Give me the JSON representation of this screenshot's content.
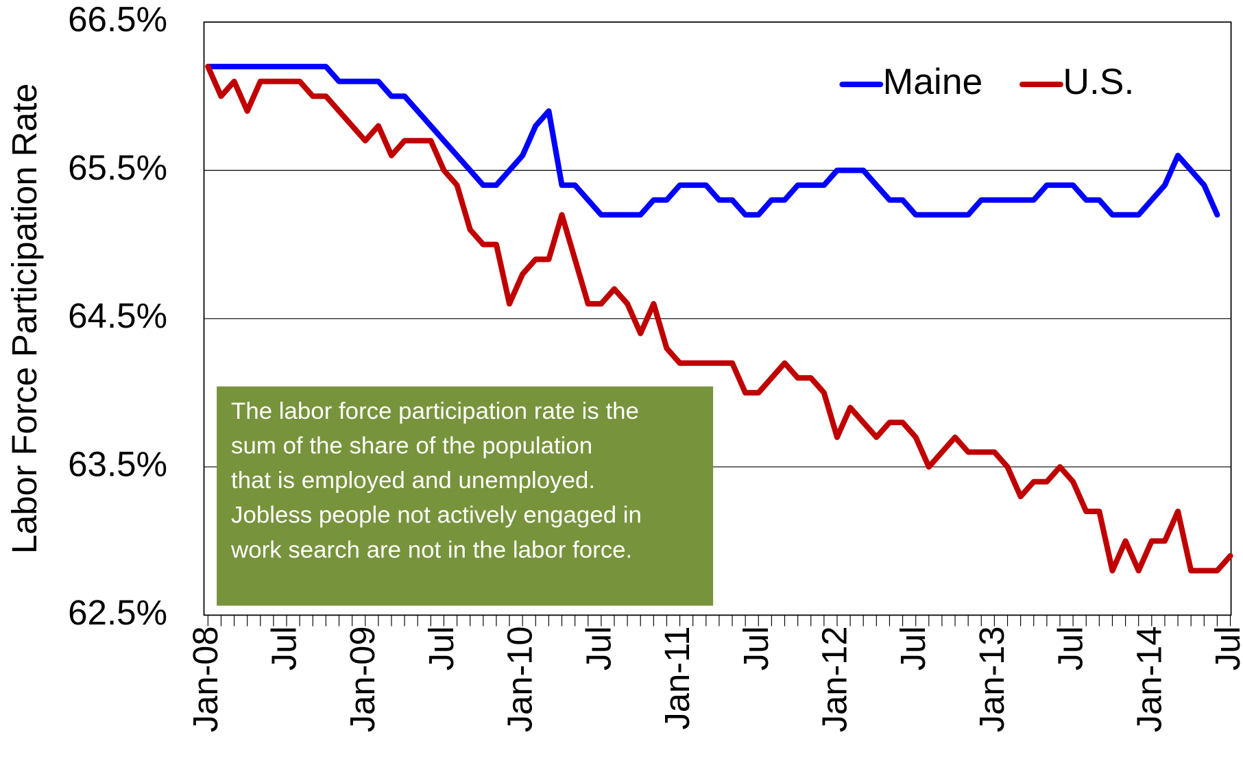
{
  "chart_data": {
    "type": "line",
    "y_axis_label": "Labor Force Participation Rate",
    "categories": [
      "Jan-08",
      null,
      null,
      null,
      null,
      null,
      "Jul",
      null,
      null,
      null,
      null,
      null,
      "Jan-09",
      null,
      null,
      null,
      null,
      null,
      "Jul",
      null,
      null,
      null,
      null,
      null,
      "Jan-10",
      null,
      null,
      null,
      null,
      null,
      "Jul",
      null,
      null,
      null,
      null,
      null,
      "Jan-11",
      null,
      null,
      null,
      null,
      null,
      "Jul",
      null,
      null,
      null,
      null,
      null,
      "Jan-12",
      null,
      null,
      null,
      null,
      null,
      "Jul",
      null,
      null,
      null,
      null,
      null,
      "Jan-13",
      null,
      null,
      null,
      null,
      null,
      "Jul",
      null,
      null,
      null,
      null,
      null,
      "Jan-14",
      null,
      null,
      null,
      null,
      null,
      "Jul"
    ],
    "series": [
      {
        "name": "Maine",
        "color": "#0000ff",
        "values": [
          66.2,
          66.2,
          66.2,
          66.2,
          66.2,
          66.2,
          66.2,
          66.2,
          66.2,
          66.2,
          66.1,
          66.1,
          66.1,
          66.1,
          66.0,
          66.0,
          65.9,
          65.8,
          65.7,
          65.6,
          65.5,
          65.4,
          65.4,
          65.5,
          65.6,
          65.8,
          65.9,
          65.4,
          65.4,
          65.3,
          65.2,
          65.2,
          65.2,
          65.2,
          65.3,
          65.3,
          65.4,
          65.4,
          65.4,
          65.3,
          65.3,
          65.2,
          65.2,
          65.3,
          65.3,
          65.4,
          65.4,
          65.4,
          65.5,
          65.5,
          65.5,
          65.4,
          65.3,
          65.3,
          65.2,
          65.2,
          65.2,
          65.2,
          65.2,
          65.3,
          65.3,
          65.3,
          65.3,
          65.3,
          65.4,
          65.4,
          65.4,
          65.3,
          65.3,
          65.2,
          65.2,
          65.2,
          65.3,
          65.4,
          65.6,
          65.5,
          65.4,
          65.2,
          null
        ]
      },
      {
        "name": "U.S.",
        "color": "#c00000",
        "values": [
          66.2,
          66.0,
          66.1,
          65.9,
          66.1,
          66.1,
          66.1,
          66.1,
          66.0,
          66.0,
          65.9,
          65.8,
          65.7,
          65.8,
          65.6,
          65.7,
          65.7,
          65.7,
          65.5,
          65.4,
          65.1,
          65.0,
          65.0,
          64.6,
          64.8,
          64.9,
          64.9,
          65.2,
          64.9,
          64.6,
          64.6,
          64.7,
          64.6,
          64.4,
          64.6,
          64.3,
          64.2,
          64.2,
          64.2,
          64.2,
          64.2,
          64.0,
          64.0,
          64.1,
          64.2,
          64.1,
          64.1,
          64.0,
          63.7,
          63.9,
          63.8,
          63.7,
          63.8,
          63.8,
          63.7,
          63.5,
          63.6,
          63.7,
          63.6,
          63.6,
          63.6,
          63.5,
          63.3,
          63.4,
          63.4,
          63.5,
          63.4,
          63.2,
          63.2,
          62.8,
          63.0,
          62.8,
          63.0,
          63.0,
          63.2,
          62.8,
          62.8,
          62.8,
          62.9
        ]
      }
    ],
    "ylim": [
      62.5,
      66.5
    ],
    "yticks": [
      {
        "value": 62.5,
        "label": "62.5%"
      },
      {
        "value": 63.5,
        "label": "63.5%"
      },
      {
        "value": 64.5,
        "label": "64.5%"
      },
      {
        "value": 65.5,
        "label": "65.5%"
      },
      {
        "value": 66.5,
        "label": "66.5%"
      }
    ],
    "grid": true,
    "legend": "top-right",
    "annotation": [
      "The labor force participation rate is the",
      "sum of the share of the population",
      "that is employed and unemployed.",
      "Jobless people not actively engaged in",
      "work search are not in the labor force."
    ],
    "annotation_color": "#77933c"
  }
}
